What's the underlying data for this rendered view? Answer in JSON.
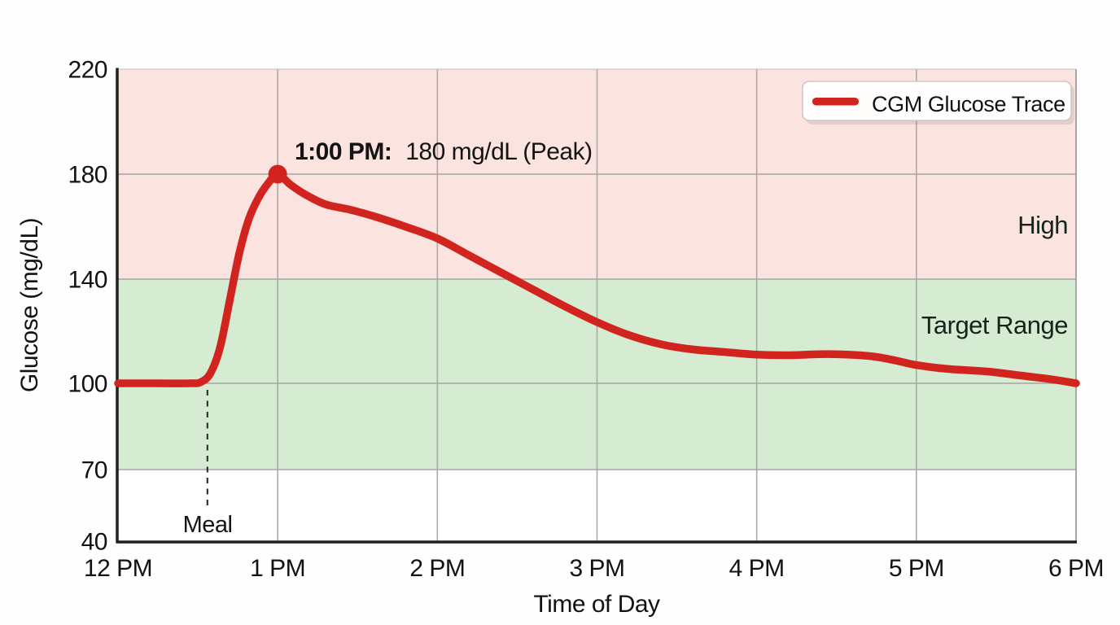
{
  "chart_data": {
    "type": "line",
    "title": "",
    "xlabel": "Time of Day",
    "ylabel": "Glucose (mg/dL)",
    "xlim_hours": [
      0,
      6
    ],
    "ylim": [
      40,
      220
    ],
    "grid": true,
    "x_ticks": [
      {
        "t": 0,
        "label": "12 PM"
      },
      {
        "t": 1,
        "label": "1 PM"
      },
      {
        "t": 2,
        "label": "2 PM"
      },
      {
        "t": 3,
        "label": "3 PM"
      },
      {
        "t": 4,
        "label": "4 PM"
      },
      {
        "t": 5,
        "label": "5 PM"
      },
      {
        "t": 6,
        "label": "6 PM"
      }
    ],
    "y_ticks": [
      {
        "v": 40,
        "label": "40"
      },
      {
        "v": 70,
        "label": "70"
      },
      {
        "v": 100,
        "label": "100"
      },
      {
        "v": 140,
        "label": "140"
      },
      {
        "v": 180,
        "label": "180"
      },
      {
        "v": 220,
        "label": "220"
      }
    ],
    "bands": [
      {
        "name": "high",
        "from": 140,
        "to": 220,
        "color": "#fbe3e0",
        "label": "High"
      },
      {
        "name": "target-range",
        "from": 70,
        "to": 140,
        "color": "#d5ecd2",
        "label": "Target Range"
      },
      {
        "name": "below-target",
        "from": 40,
        "to": 70,
        "color": "#ffffff",
        "label": ""
      }
    ],
    "series": [
      {
        "name": "CGM Glucose Trace",
        "color": "#d2241e",
        "points": [
          [
            0,
            100
          ],
          [
            0.25,
            100
          ],
          [
            0.45,
            100
          ],
          [
            0.52,
            100.5
          ],
          [
            0.58,
            104
          ],
          [
            0.64,
            114
          ],
          [
            0.7,
            132
          ],
          [
            0.76,
            150
          ],
          [
            0.82,
            163
          ],
          [
            0.88,
            171
          ],
          [
            0.94,
            176.5
          ],
          [
            1,
            180
          ],
          [
            1.08,
            176
          ],
          [
            1.18,
            172
          ],
          [
            1.3,
            168.5
          ],
          [
            1.45,
            166.5
          ],
          [
            1.6,
            164
          ],
          [
            1.8,
            160
          ],
          [
            2,
            155.5
          ],
          [
            2.2,
            149
          ],
          [
            2.4,
            142.5
          ],
          [
            2.6,
            136
          ],
          [
            2.8,
            129.5
          ],
          [
            3,
            123.5
          ],
          [
            3.2,
            118.5
          ],
          [
            3.4,
            115
          ],
          [
            3.6,
            113
          ],
          [
            3.8,
            112
          ],
          [
            4,
            111
          ],
          [
            4.2,
            110.8
          ],
          [
            4.45,
            111.2
          ],
          [
            4.7,
            110.5
          ],
          [
            4.85,
            109
          ],
          [
            5,
            107
          ],
          [
            5.2,
            105.5
          ],
          [
            5.45,
            104.5
          ],
          [
            5.65,
            103
          ],
          [
            5.85,
            101.5
          ],
          [
            6,
            100
          ]
        ]
      }
    ],
    "peak_annotation": {
      "bold": "1:00 PM:",
      "rest": "180 mg/dL (Peak)",
      "t": 1,
      "value": 180,
      "marker_color": "#d2241e"
    },
    "meal_marker": {
      "t": 0.56,
      "label": "Meal"
    },
    "legend": {
      "position": "top-right",
      "entries": [
        {
          "label": "CGM Glucose Trace",
          "color": "#d2241e"
        }
      ]
    }
  }
}
